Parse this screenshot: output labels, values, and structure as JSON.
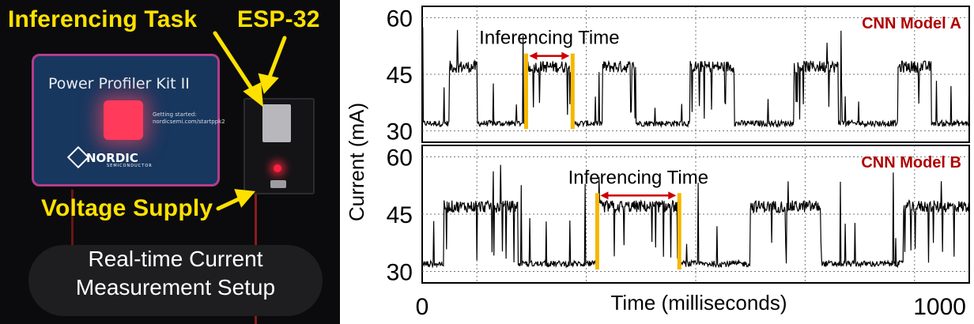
{
  "photo": {
    "labels": {
      "inferencing_task": "Inferencing Task",
      "esp32": "ESP-32",
      "voltage_supply": "Voltage Supply"
    },
    "caption_line1": "Real-time Current",
    "caption_line2": "Measurement Setup",
    "ppk_title": "Power Profiler Kit II",
    "ppk_getting_started_1": "Getting started:",
    "ppk_getting_started_2": "nordicsemi.com/startppk2",
    "ppk_brand": "NORDIC",
    "ppk_brand_sub": "SEMICONDUCTOR",
    "label_color": "#ffe100"
  },
  "chart_data": [
    {
      "type": "line",
      "panel_label": "CNN Model A",
      "annotation": "Inferencing Time",
      "annotation_span": [
        190,
        275
      ],
      "y_ticks": [
        30,
        45,
        60
      ],
      "ylim": [
        27,
        63
      ],
      "xlim": [
        0,
        1000
      ],
      "baseline_mA": 32,
      "active_mA": 47,
      "active_intervals": [
        [
          50,
          100
        ],
        [
          190,
          275
        ],
        [
          330,
          390
        ],
        [
          490,
          570
        ],
        [
          680,
          760
        ],
        [
          870,
          930
        ],
        [
          1000,
          1040
        ]
      ],
      "grid": true,
      "line_color": "#000000",
      "marker_color": "#f5b800",
      "arrow_color": "#cc0000",
      "label_color": "#b00000"
    },
    {
      "type": "line",
      "panel_label": "CNN Model B",
      "annotation": "Inferencing Time",
      "annotation_span": [
        320,
        470
      ],
      "y_ticks": [
        30,
        45,
        60
      ],
      "ylim": [
        27,
        63
      ],
      "xlim": [
        0,
        1000
      ],
      "baseline_mA": 32,
      "active_mA": 47,
      "active_intervals": [
        [
          40,
          175
        ],
        [
          320,
          470
        ],
        [
          600,
          730
        ],
        [
          880,
          1010
        ]
      ],
      "grid": true,
      "line_color": "#000000",
      "marker_color": "#f5b800",
      "arrow_color": "#cc0000",
      "label_color": "#b00000"
    }
  ],
  "axes": {
    "ylabel": "Current (mA)",
    "xlabel": "Time (milliseconds)",
    "x_tick_min": "0",
    "x_tick_max": "1000"
  }
}
